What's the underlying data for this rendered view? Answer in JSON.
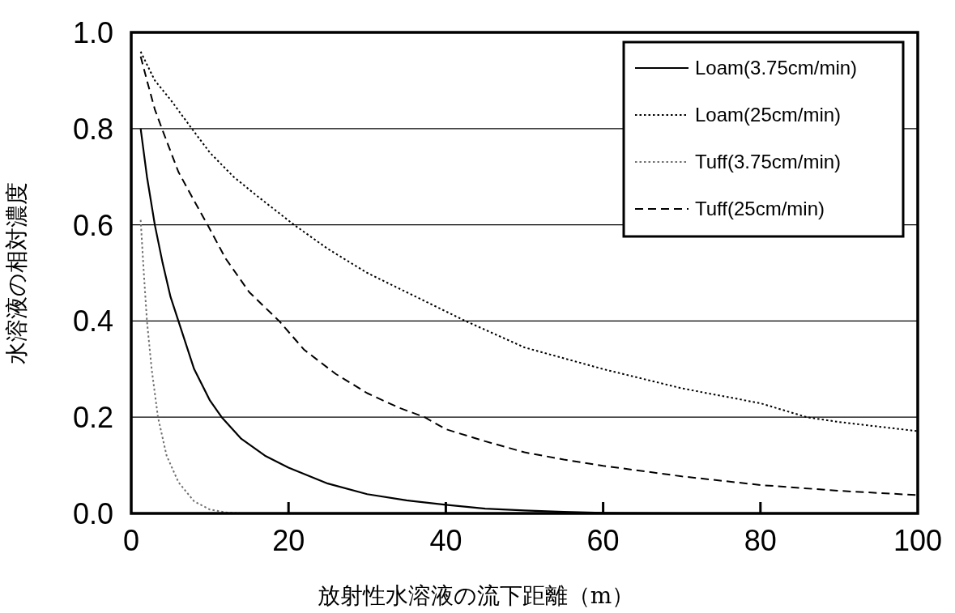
{
  "chart_data": {
    "type": "line",
    "xlabel": "放射性水溶液の流下距離（m）",
    "ylabel": "水溶液の相対濃度",
    "xlim": [
      0,
      100
    ],
    "xticks": [
      0,
      20,
      40,
      60,
      80,
      100
    ],
    "ylim": [
      0,
      1
    ],
    "yticks": [
      {
        "value": 0,
        "label": "0.0"
      },
      0.2,
      0.4,
      0.6,
      0.8,
      {
        "value": 1,
        "label": "1.0"
      }
    ],
    "grid": "y",
    "legend": "top right",
    "marker": "none",
    "series": [
      {
        "name": "Loam(3.75cm/min)",
        "color": "#000000",
        "line_style": "solid",
        "x": [
          1.2,
          2,
          3,
          4,
          5,
          6,
          8,
          10,
          11.5,
          14,
          17,
          20,
          25,
          30,
          35,
          40,
          45,
          50,
          55,
          60,
          70
        ],
        "values": [
          0.8,
          0.7,
          0.6,
          0.52,
          0.45,
          0.4,
          0.3,
          0.235,
          0.2,
          0.155,
          0.12,
          0.095,
          0.062,
          0.04,
          0.027,
          0.018,
          0.01,
          0.006,
          0.003,
          0.001,
          0
        ]
      },
      {
        "name": "Loam(25cm/min)",
        "color": "#000000",
        "line_style": "dotted",
        "x": [
          1.2,
          3,
          5,
          7.7,
          10,
          13,
          16,
          20.7,
          25,
          30,
          35,
          42.5,
          50,
          60,
          70,
          80,
          85.9,
          90,
          100
        ],
        "values": [
          0.96,
          0.9,
          0.86,
          0.8,
          0.75,
          0.7,
          0.66,
          0.6,
          0.55,
          0.5,
          0.46,
          0.4,
          0.345,
          0.3,
          0.26,
          0.229,
          0.2,
          0.19,
          0.171
        ]
      },
      {
        "name": "Tuff(3.75cm/min)",
        "color": "#707070",
        "line_style": "dotted",
        "x": [
          1.2,
          1.6,
          2,
          2.6,
          3.4,
          4.5,
          6,
          8,
          10,
          12,
          14
        ],
        "values": [
          0.61,
          0.5,
          0.4,
          0.3,
          0.2,
          0.12,
          0.065,
          0.025,
          0.008,
          0.002,
          0
        ]
      },
      {
        "name": "Tuff(25cm/min)",
        "color": "#000000",
        "line_style": "dashed",
        "x": [
          1.2,
          2,
          3,
          3.9,
          6,
          8,
          9.7,
          12,
          15,
          18.8,
          22,
          26,
          30,
          34,
          37.3,
          40,
          45,
          50,
          55,
          60,
          70,
          80,
          90,
          100
        ],
        "values": [
          0.95,
          0.9,
          0.84,
          0.8,
          0.71,
          0.65,
          0.6,
          0.53,
          0.46,
          0.4,
          0.34,
          0.29,
          0.25,
          0.22,
          0.2,
          0.175,
          0.15,
          0.127,
          0.112,
          0.099,
          0.077,
          0.059,
          0.047,
          0.038
        ]
      }
    ]
  }
}
